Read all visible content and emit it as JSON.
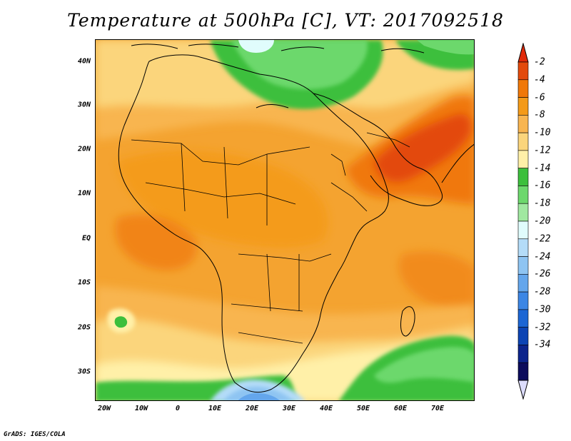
{
  "title": "Temperature at 500hPa [C], VT: 2017092518",
  "footer": "GrADS: IGES/COLA",
  "map": {
    "type": "filled-contour-map",
    "variable": "Temperature at 500hPa",
    "units": "C",
    "valid_time": "2017092518",
    "projection": "latlon",
    "lon_range": [
      -23,
      80
    ],
    "lat_range": [
      -37,
      44
    ],
    "region": "Africa, Arabian Peninsula and Indian subcontinent",
    "lat_ticks": [
      "40N",
      "30N",
      "20N",
      "10N",
      "EQ",
      "10S",
      "20S",
      "30S"
    ],
    "lon_ticks": [
      "20W",
      "10W",
      "0",
      "10E",
      "20E",
      "30E",
      "40E",
      "50E",
      "60E",
      "70E"
    ]
  },
  "colorbar": {
    "labels": [
      "-2",
      "-4",
      "-6",
      "-8",
      "-10",
      "-12",
      "-14",
      "-16",
      "-18",
      "-20",
      "-22",
      "-24",
      "-26",
      "-28",
      "-30",
      "-32",
      "-34"
    ],
    "colors": [
      "#e34a0c",
      "#f07808",
      "#f49a18",
      "#f8b550",
      "#fbd57c",
      "#fff0a8",
      "#3cbf3c",
      "#6cd86c",
      "#a0e8a0",
      "#e0fcfc",
      "#b4dcf8",
      "#8ec4f2",
      "#64a6ec",
      "#3c86e4",
      "#1c66d4",
      "#0c44b4",
      "#0c248c",
      "#0c0c5c"
    ],
    "end_colors": {
      "warm": "#e12a0a",
      "cold": "#dcdcfc"
    }
  }
}
